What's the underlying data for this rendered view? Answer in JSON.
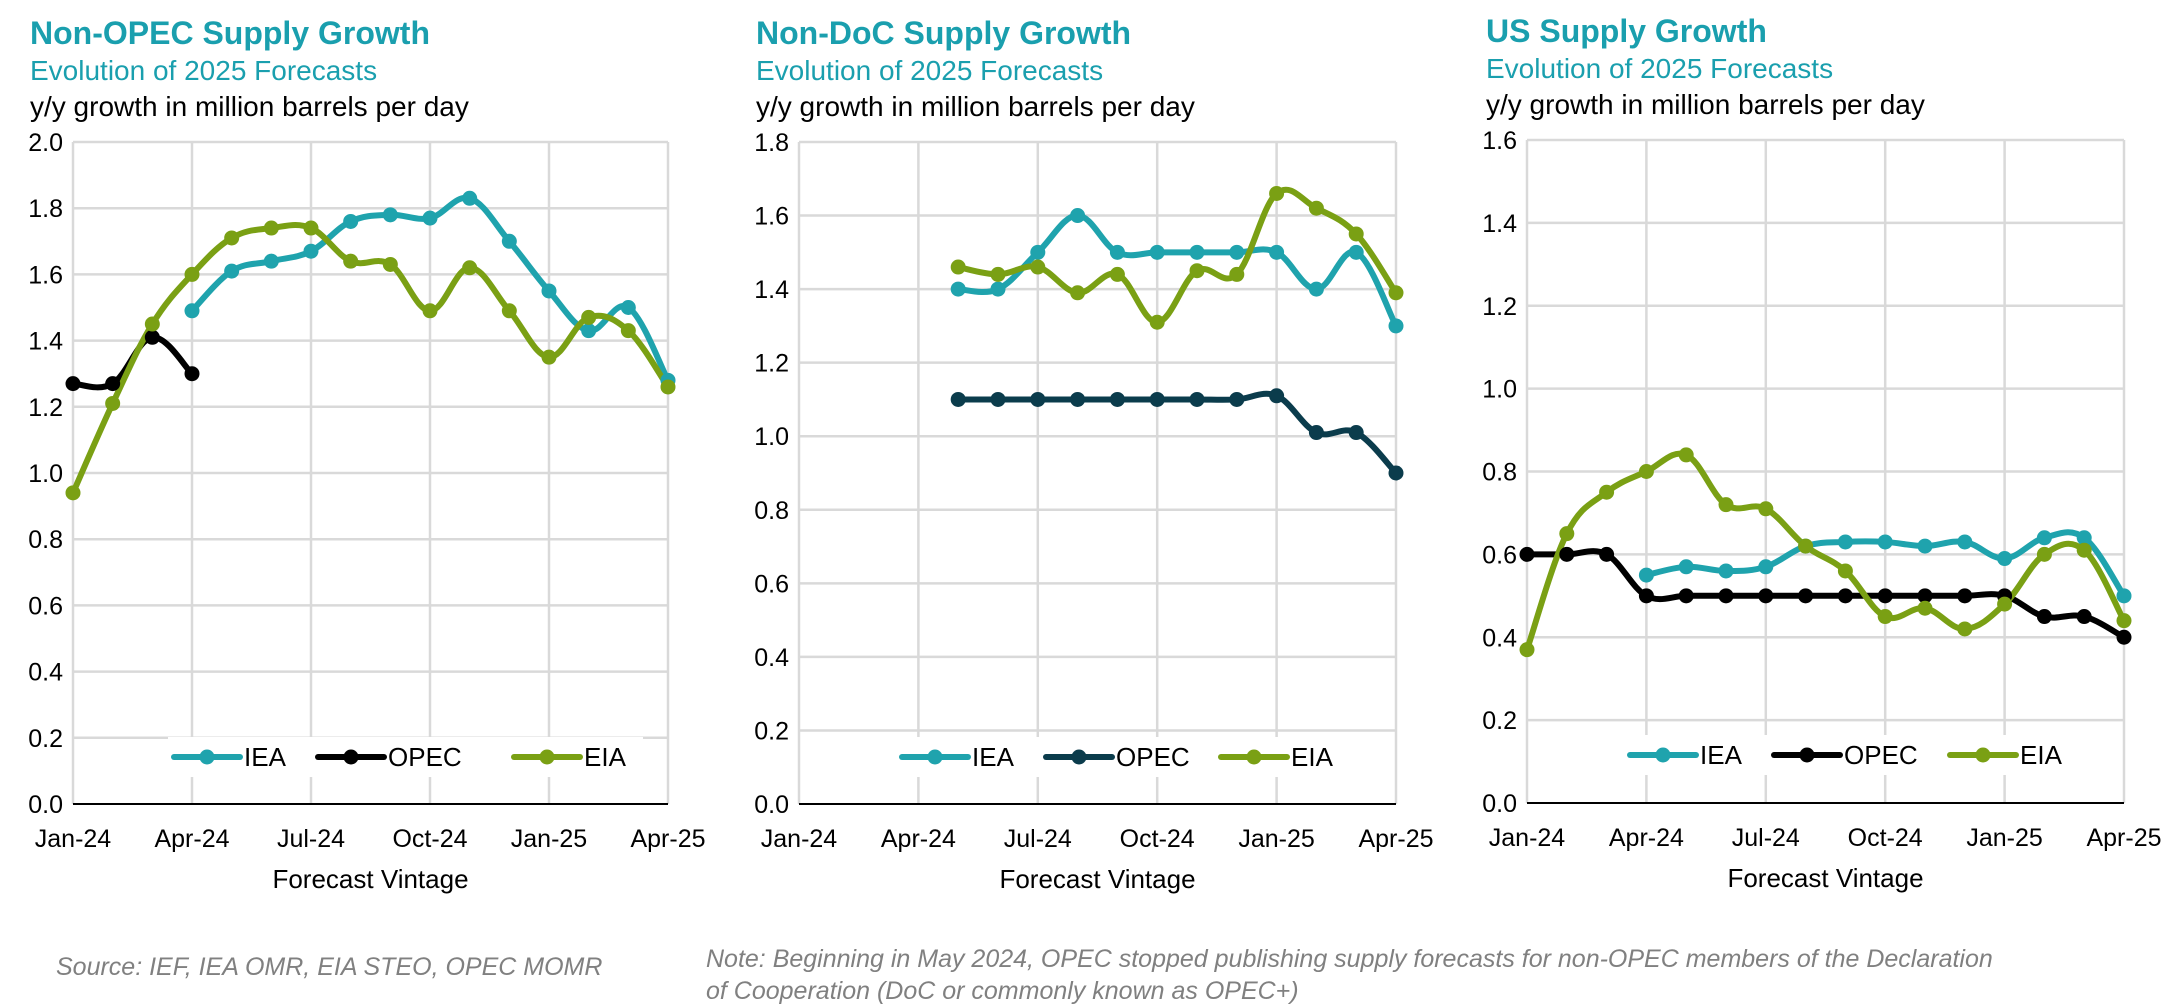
{
  "colors": {
    "iea": "#1fa3ad",
    "opec": "#0b3c4c",
    "opec_us": "#000000",
    "eia": "#7aa014",
    "title": "#1a9fae",
    "grid": "#d9d9d9"
  },
  "chart_data": [
    {
      "type": "line",
      "title": "Non-OPEC Supply Growth",
      "subtitle": "Evolution of 2025 Forecasts",
      "ylabel": "y/y growth in million barrels per day",
      "xlabel": "Forecast Vintage",
      "x": [
        "Jan-24",
        "Feb-24",
        "Mar-24",
        "Apr-24",
        "May-24",
        "Jun-24",
        "Jul-24",
        "Aug-24",
        "Sep-24",
        "Oct-24",
        "Nov-24",
        "Dec-24",
        "Jan-25",
        "Feb-25",
        "Mar-25",
        "Apr-25"
      ],
      "x_tick_labels": [
        "Jan-24",
        "Apr-24",
        "Jul-24",
        "Oct-24",
        "Jan-25",
        "Apr-25"
      ],
      "ylim": [
        0,
        2.0
      ],
      "y_ticks": [
        "0.0",
        "0.2",
        "0.4",
        "0.6",
        "0.8",
        "1.0",
        "1.2",
        "1.4",
        "1.6",
        "1.8",
        "2.0"
      ],
      "legend_position": "bottom-center",
      "series": [
        {
          "name": "IEA",
          "values": [
            null,
            null,
            null,
            1.49,
            1.61,
            1.64,
            1.67,
            1.76,
            1.78,
            1.77,
            1.83,
            1.7,
            1.55,
            1.43,
            1.5,
            1.28
          ]
        },
        {
          "name": "OPEC",
          "values": [
            1.27,
            1.27,
            1.41,
            1.3,
            null,
            null,
            null,
            null,
            null,
            null,
            null,
            null,
            null,
            null,
            null,
            null
          ]
        },
        {
          "name": "EIA",
          "values": [
            0.94,
            1.21,
            1.45,
            1.6,
            1.71,
            1.74,
            1.74,
            1.64,
            1.63,
            1.49,
            1.62,
            1.49,
            1.35,
            1.47,
            1.43,
            1.26
          ]
        }
      ]
    },
    {
      "type": "line",
      "title": "Non-DoC Supply Growth",
      "subtitle": "Evolution of 2025 Forecasts",
      "ylabel": "y/y growth in million barrels per day",
      "xlabel": "Forecast Vintage",
      "x": [
        "Jan-24",
        "Feb-24",
        "Mar-24",
        "Apr-24",
        "May-24",
        "Jun-24",
        "Jul-24",
        "Aug-24",
        "Sep-24",
        "Oct-24",
        "Nov-24",
        "Dec-24",
        "Jan-25",
        "Feb-25",
        "Mar-25",
        "Apr-25"
      ],
      "x_tick_labels": [
        "Jan-24",
        "Apr-24",
        "Jul-24",
        "Oct-24",
        "Jan-25",
        "Apr-25"
      ],
      "ylim": [
        0,
        1.8
      ],
      "y_ticks": [
        "0.0",
        "0.2",
        "0.4",
        "0.6",
        "0.8",
        "1.0",
        "1.2",
        "1.4",
        "1.6",
        "1.8"
      ],
      "legend_position": "bottom-center",
      "series": [
        {
          "name": "IEA",
          "values": [
            null,
            null,
            null,
            null,
            1.4,
            1.4,
            1.5,
            1.6,
            1.5,
            1.5,
            1.5,
            1.5,
            1.5,
            1.4,
            1.5,
            1.3
          ]
        },
        {
          "name": "OPEC",
          "values": [
            null,
            null,
            null,
            null,
            1.1,
            1.1,
            1.1,
            1.1,
            1.1,
            1.1,
            1.1,
            1.1,
            1.11,
            1.01,
            1.01,
            0.9
          ]
        },
        {
          "name": "EIA",
          "values": [
            null,
            null,
            null,
            null,
            1.46,
            1.44,
            1.46,
            1.39,
            1.44,
            1.31,
            1.45,
            1.44,
            1.66,
            1.62,
            1.55,
            1.39
          ]
        }
      ]
    },
    {
      "type": "line",
      "title": "US Supply Growth",
      "subtitle": "Evolution of 2025 Forecasts",
      "ylabel": "y/y growth in million barrels per day",
      "xlabel": "Forecast Vintage",
      "x": [
        "Jan-24",
        "Feb-24",
        "Mar-24",
        "Apr-24",
        "May-24",
        "Jun-24",
        "Jul-24",
        "Aug-24",
        "Sep-24",
        "Oct-24",
        "Nov-24",
        "Dec-24",
        "Jan-25",
        "Feb-25",
        "Mar-25",
        "Apr-25"
      ],
      "x_tick_labels": [
        "Jan-24",
        "Apr-24",
        "Jul-24",
        "Oct-24",
        "Jan-25",
        "Apr-25"
      ],
      "ylim": [
        0,
        1.6
      ],
      "y_ticks": [
        "0.0",
        "0.2",
        "0.4",
        "0.6",
        "0.8",
        "1.0",
        "1.2",
        "1.4",
        "1.6"
      ],
      "legend_position": "bottom-center",
      "series": [
        {
          "name": "IEA",
          "values": [
            null,
            null,
            null,
            0.55,
            0.57,
            0.56,
            0.57,
            0.62,
            0.63,
            0.63,
            0.62,
            0.63,
            0.59,
            0.64,
            0.64,
            0.5
          ]
        },
        {
          "name": "OPEC",
          "values": [
            0.6,
            0.6,
            0.6,
            0.5,
            0.5,
            0.5,
            0.5,
            0.5,
            0.5,
            0.5,
            0.5,
            0.5,
            0.5,
            0.45,
            0.45,
            0.4
          ]
        },
        {
          "name": "EIA",
          "values": [
            0.37,
            0.65,
            0.75,
            0.8,
            0.84,
            0.72,
            0.71,
            0.62,
            0.56,
            0.45,
            0.47,
            0.42,
            0.48,
            0.6,
            0.61,
            0.44
          ]
        }
      ]
    }
  ],
  "footer": {
    "source": "Source: IEF, IEA OMR, EIA STEO, OPEC MOMR",
    "note_line1": "Note: Beginning in May 2024, OPEC stopped publishing supply forecasts for non-OPEC members of the Declaration",
    "note_line2": "of Cooperation (DoC or commonly known as OPEC+)"
  }
}
